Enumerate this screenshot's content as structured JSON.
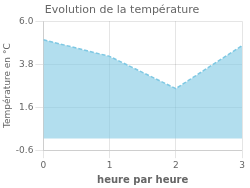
{
  "chart_data": {
    "type": "area",
    "title": "Evolution de la température",
    "xlabel": "heure par heure",
    "ylabel": "Température en °C",
    "x": [
      0,
      1,
      2,
      3
    ],
    "series": [
      {
        "color": "#7ec8e3",
        "line_style": "dashed",
        "values": [
          5.05,
          4.2,
          2.55,
          4.75
        ]
      }
    ],
    "xlim": [
      0,
      3
    ],
    "xticks": [
      0,
      1,
      2,
      3
    ],
    "ylim": [
      -0.6,
      6.0
    ],
    "yticks": [
      -0.6,
      1.6,
      3.8,
      {
        "value": 6.0,
        "label": "6.0"
      }
    ],
    "grid": true
  }
}
